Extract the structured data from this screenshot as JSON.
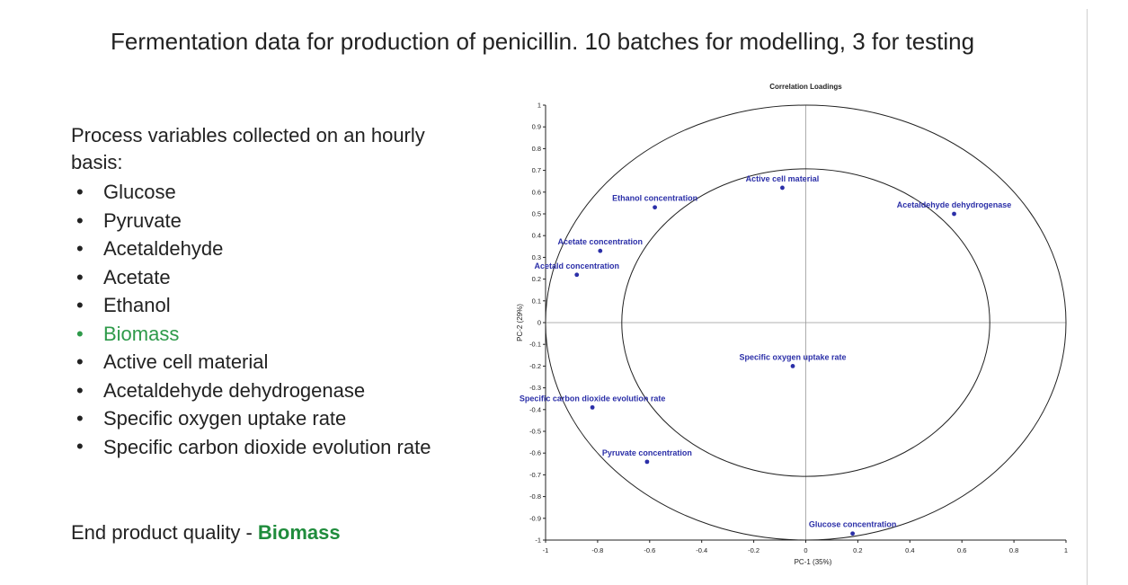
{
  "slide": {
    "title": "Fermentation data for production of penicillin. 10 batches for modelling, 3 for testing",
    "intro": "Process variables collected on an hourly basis:",
    "variables": [
      "Glucose",
      "Pyruvate",
      "Acetaldehyde",
      "Acetate",
      "Ethanol",
      "Biomass",
      "Active cell material",
      "Acetaldehyde dehydrogenase",
      "Specific oxygen uptake rate",
      "Specific carbon dioxide evolution rate"
    ],
    "bullet": "•",
    "quality_label": "End product quality - ",
    "quality_value": "Biomass",
    "colors": {
      "highlight": "#2e9a4a",
      "quality": "#1f8c3c",
      "points": "#2b2fa8"
    }
  },
  "chart_data": {
    "type": "scatter",
    "title": "Correlation Loadings",
    "xlabel": "PC-1 (35%)",
    "ylabel": "PC-2 (29%)",
    "xlim": [
      -1,
      1
    ],
    "ylim": [
      -1,
      1
    ],
    "xticks": [
      -1,
      -0.8,
      -0.6,
      -0.4,
      -0.2,
      0,
      0.2,
      0.4,
      0.6,
      0.8,
      1
    ],
    "xtick_labels": [
      "-1",
      "-0.8",
      "-0.6",
      "-0.4",
      "-0.2",
      "0",
      "0.2",
      "0.4",
      "0.6",
      "0.8",
      "1"
    ],
    "yticks": [
      1,
      0.9,
      0.8,
      0.7,
      0.6,
      0.5,
      0.4,
      0.3,
      0.2,
      0.1,
      0,
      -0.1,
      -0.2,
      -0.3,
      -0.4,
      -0.5,
      -0.6,
      -0.7,
      -0.8,
      -0.9,
      -1
    ],
    "ytick_labels": [
      "1",
      "0.9",
      "0.8",
      "0.7",
      "0.6",
      "0.5",
      "0.4",
      "0.3",
      "0.2",
      "0.1",
      "0",
      "-0.1",
      "-0.2",
      "-0.3",
      "-0.4",
      "-0.5",
      "-0.6",
      "-0.7",
      "-0.8",
      "-0.9",
      "-1"
    ],
    "circles": [
      1.0,
      0.7071
    ],
    "points": [
      {
        "label": "Active cell material",
        "x": -0.09,
        "y": 0.62,
        "label_pos": "above"
      },
      {
        "label": "Ethanol concentration",
        "x": -0.58,
        "y": 0.53,
        "label_pos": "above"
      },
      {
        "label": "Acetaldehyde dehydrogenase",
        "x": 0.57,
        "y": 0.5,
        "label_pos": "above"
      },
      {
        "label": "Acetate concentration",
        "x": -0.79,
        "y": 0.33,
        "label_pos": "above"
      },
      {
        "label": "Acetald concentration",
        "x": -0.88,
        "y": 0.22,
        "label_pos": "above"
      },
      {
        "label": "Specific oxygen uptake rate",
        "x": -0.05,
        "y": -0.2,
        "label_pos": "above"
      },
      {
        "label": "Specific carbon dioxide evolution rate",
        "x": -0.82,
        "y": -0.39,
        "label_pos": "above"
      },
      {
        "label": "Pyruvate concentration",
        "x": -0.61,
        "y": -0.64,
        "label_pos": "above"
      },
      {
        "label": "Glucose concentration",
        "x": 0.18,
        "y": -0.97,
        "label_pos": "above"
      }
    ]
  }
}
